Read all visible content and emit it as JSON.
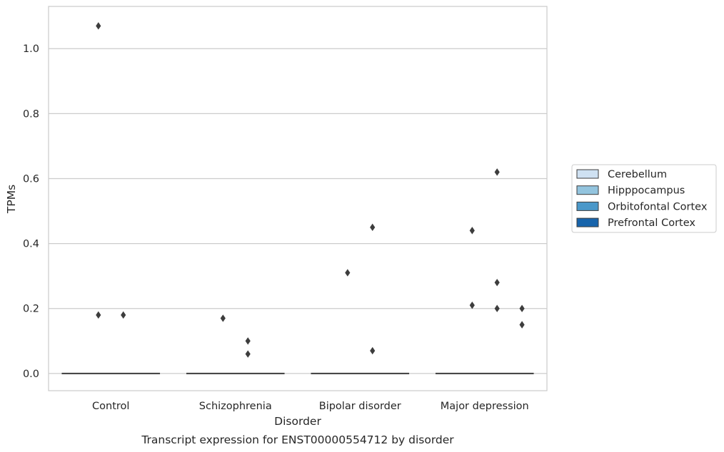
{
  "chart_data": {
    "type": "boxplot",
    "xlabel": "Disorder",
    "ylabel": "TPMs",
    "caption": "Transcript expression for ENST00000554712 by disorder",
    "categories": [
      "Control",
      "Schizophrenia",
      "Bipolar disorder",
      "Major depression"
    ],
    "hue_order": [
      "Cerebellum",
      "Hipppocampus",
      "Orbitofontal Cortex",
      "Prefrontal Cortex"
    ],
    "colors": {
      "Cerebellum": "#cfe1f2",
      "Hipppocampus": "#93c4de",
      "Orbitofontal Cortex": "#4a98c9",
      "Prefrontal Cortex": "#1764ab"
    },
    "ylim": [
      -0.053,
      1.13
    ],
    "yticks": [
      0.0,
      0.2,
      0.4,
      0.6,
      0.8,
      1.0
    ],
    "ytick_labels": [
      "0.0",
      "0.2",
      "0.4",
      "0.6",
      "0.8",
      "1.0"
    ],
    "grid": "y",
    "legend_position": "right",
    "boxes": [
      {
        "category": "Control",
        "median": 0.0
      },
      {
        "category": "Schizophrenia",
        "median": 0.0
      },
      {
        "category": "Bipolar disorder",
        "median": 0.0
      },
      {
        "category": "Major depression",
        "median": 0.0
      }
    ],
    "outliers": [
      {
        "category": "Control",
        "hue": "Hipppocampus",
        "y": 1.07
      },
      {
        "category": "Control",
        "hue": "Hipppocampus",
        "y": 0.18
      },
      {
        "category": "Control",
        "hue": "Orbitofontal Cortex",
        "y": 0.18
      },
      {
        "category": "Schizophrenia",
        "hue": "Orbitofontal Cortex",
        "y": 0.1
      },
      {
        "category": "Schizophrenia",
        "hue": "Orbitofontal Cortex",
        "y": 0.06
      },
      {
        "category": "Schizophrenia",
        "hue": "Hipppocampus",
        "y": 0.17
      },
      {
        "category": "Bipolar disorder",
        "hue": "Hipppocampus",
        "y": 0.31
      },
      {
        "category": "Bipolar disorder",
        "hue": "Orbitofontal Cortex",
        "y": 0.45
      },
      {
        "category": "Bipolar disorder",
        "hue": "Orbitofontal Cortex",
        "y": 0.07
      },
      {
        "category": "Major depression",
        "hue": "Hipppocampus",
        "y": 0.44
      },
      {
        "category": "Major depression",
        "hue": "Hipppocampus",
        "y": 0.21
      },
      {
        "category": "Major depression",
        "hue": "Orbitofontal Cortex",
        "y": 0.62
      },
      {
        "category": "Major depression",
        "hue": "Orbitofontal Cortex",
        "y": 0.28
      },
      {
        "category": "Major depression",
        "hue": "Orbitofontal Cortex",
        "y": 0.2
      },
      {
        "category": "Major depression",
        "hue": "Prefrontal Cortex",
        "y": 0.2
      },
      {
        "category": "Major depression",
        "hue": "Prefrontal Cortex",
        "y": 0.15
      }
    ]
  }
}
